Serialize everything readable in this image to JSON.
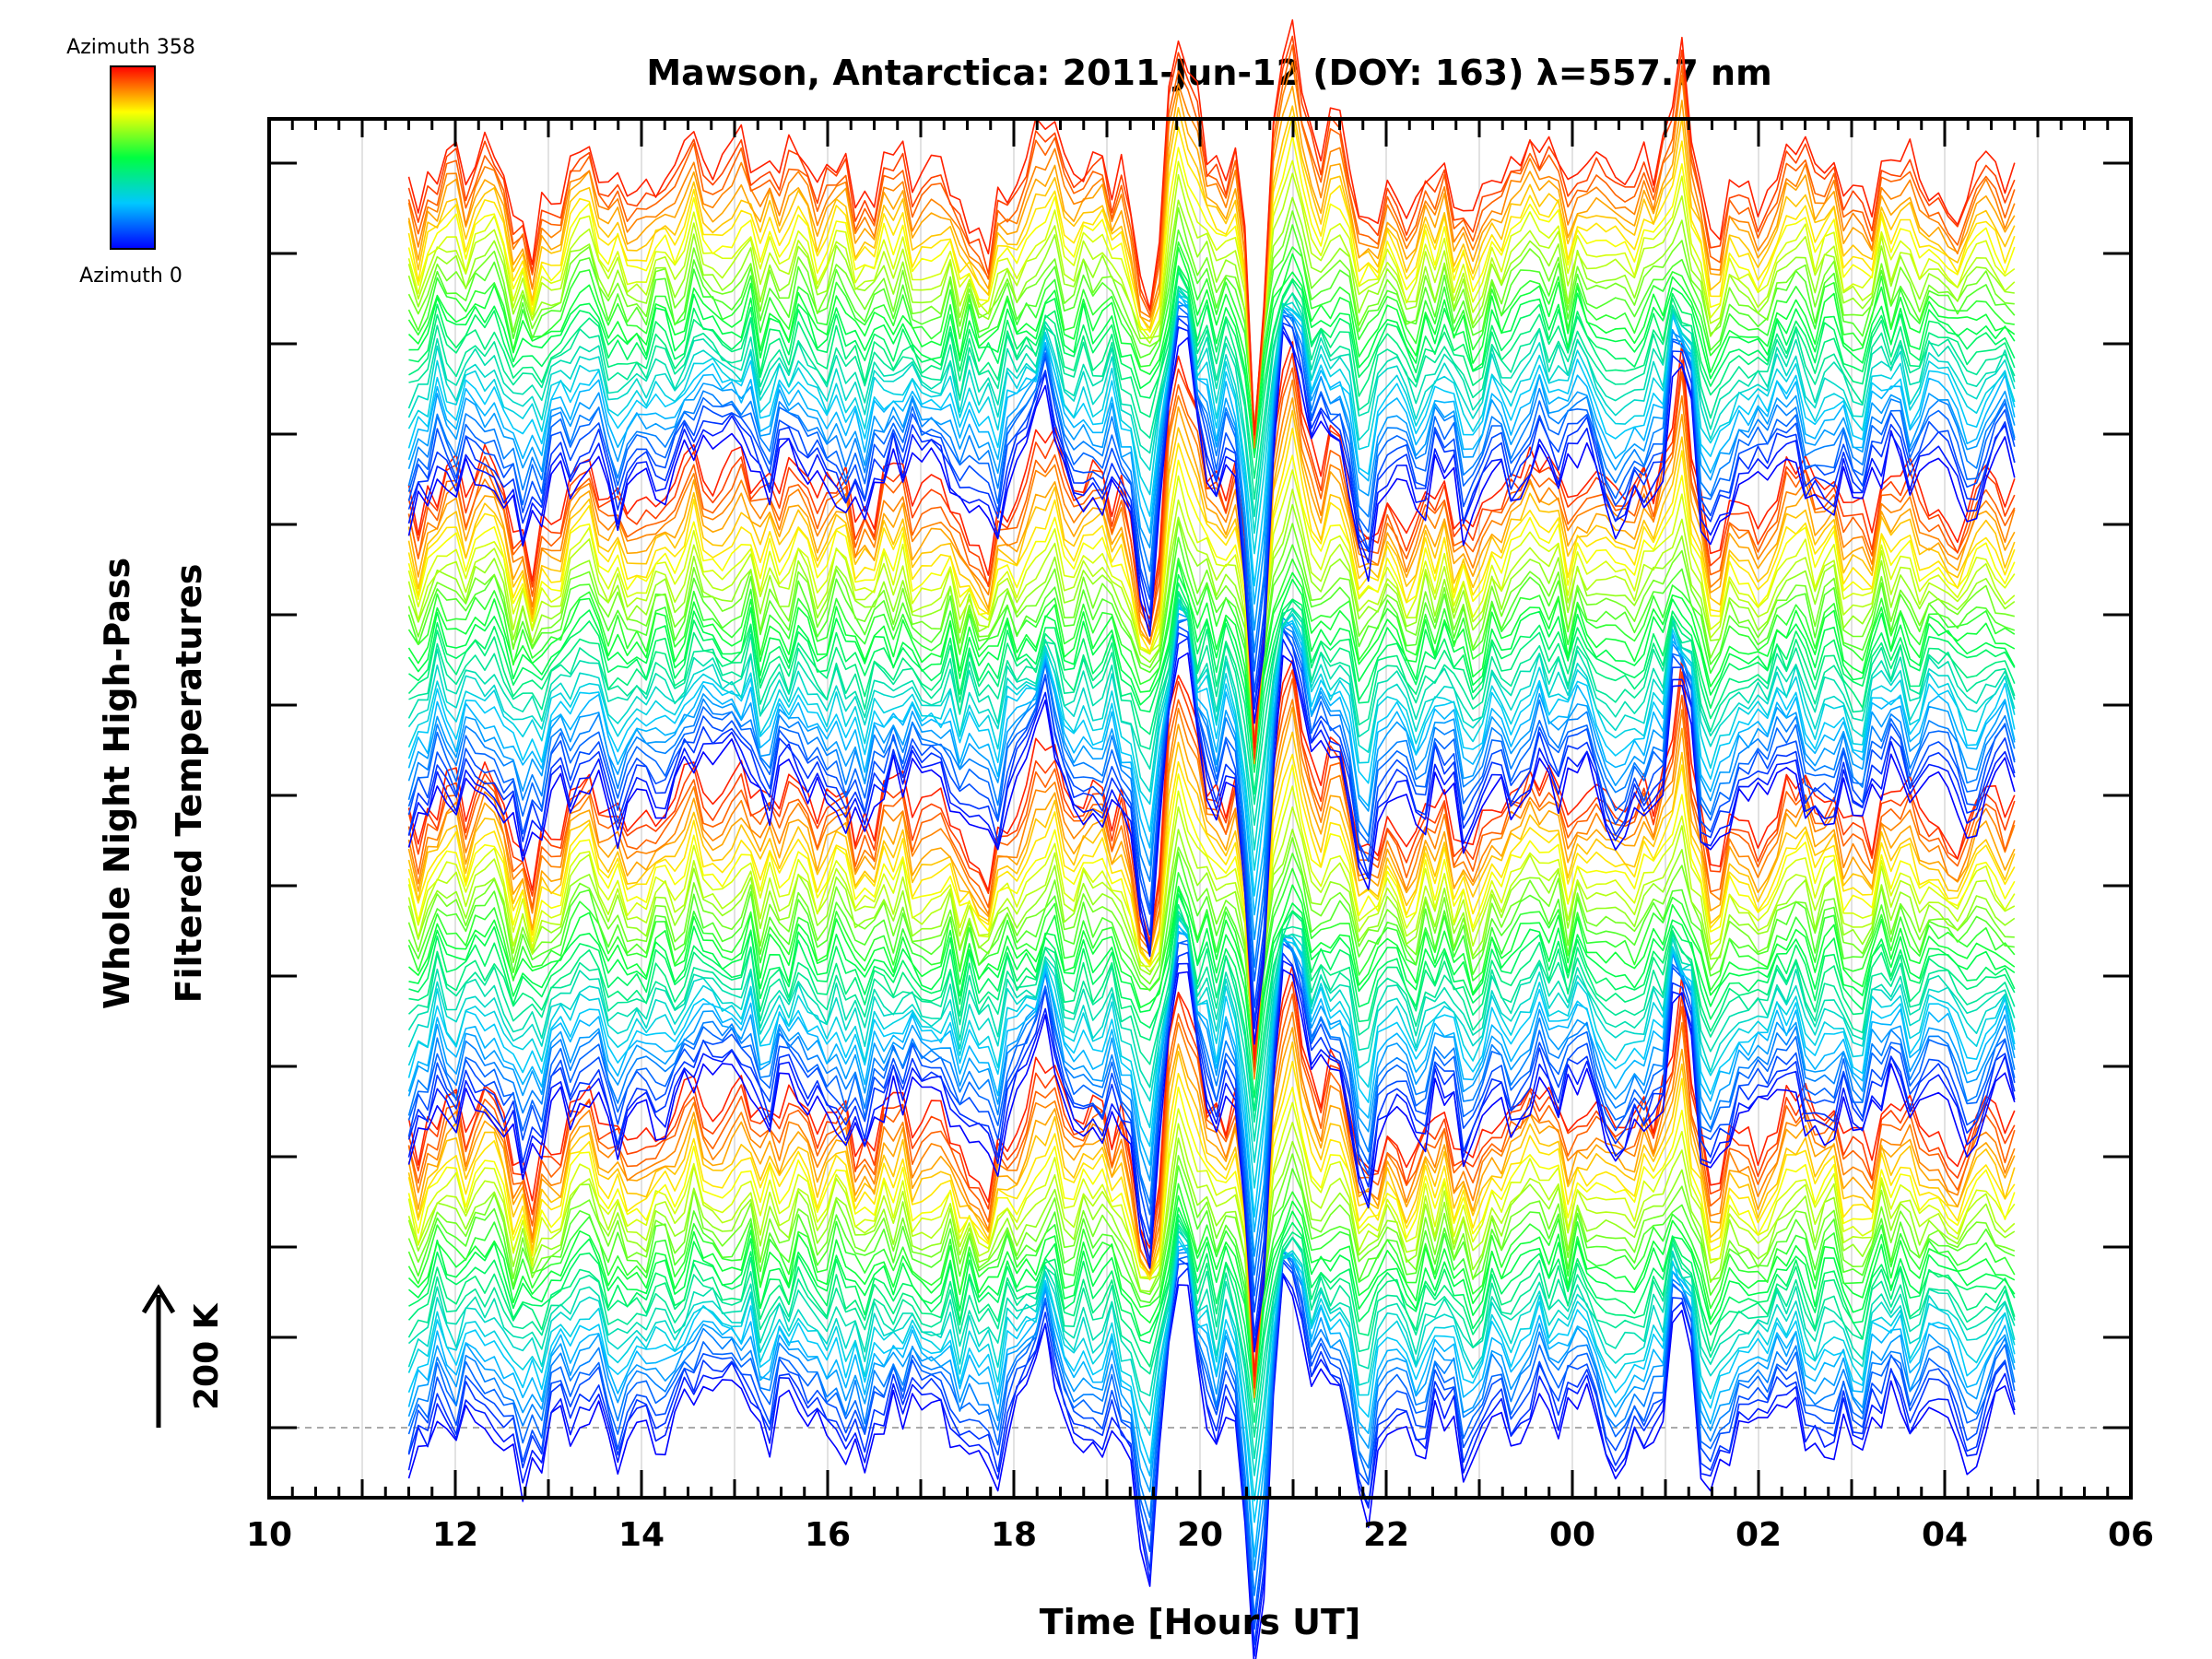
{
  "chart_data": {
    "type": "line",
    "title": "Mawson, Antarctica: 2011-Jun-12 (DOY: 163) λ=557.7 nm",
    "xlabel": "Time [Hours UT]",
    "ylabel_lines": [
      "Whole Night High-Pass",
      "Filtered Temperatures"
    ],
    "x_tick_labels": [
      "10",
      "12",
      "14",
      "16",
      "18",
      "20",
      "22",
      "00",
      "02",
      "04",
      "06"
    ],
    "x_range_hours": [
      10,
      30
    ],
    "data_time_range_hours": [
      11.5,
      28.75
    ],
    "scale_bar": {
      "label": "200 K",
      "kelvin": 200
    },
    "legend": {
      "top_label": "Azimuth 358",
      "bottom_label": "Azimuth 0",
      "colormap": "rainbow"
    },
    "azimuth_range": [
      0,
      358
    ],
    "series_count": 124,
    "stack_group_size": 31,
    "grid": true,
    "colors": {
      "low": "#0000ff",
      "mid": "#00ff00",
      "high": "#ff0000"
    },
    "events": [
      {
        "time_hours": 19.45,
        "kelvin": -280,
        "width_hours": 0.18
      },
      {
        "time_hours": 19.75,
        "kelvin": 230,
        "width_hours": 0.25
      },
      {
        "time_hours": 20.6,
        "kelvin": -380,
        "width_hours": 0.12
      },
      {
        "time_hours": 20.95,
        "kelvin": 200,
        "width_hours": 0.2
      },
      {
        "time_hours": 21.35,
        "kelvin": 60,
        "width_hours": 0.3
      },
      {
        "time_hours": 21.75,
        "kelvin": -110,
        "width_hours": 0.18
      },
      {
        "time_hours": 17.75,
        "kelvin": -90,
        "width_hours": 0.15
      },
      {
        "time_hours": 18.4,
        "kelvin": 90,
        "width_hours": 0.2
      },
      {
        "time_hours": 15.0,
        "kelvin": 60,
        "width_hours": 0.35
      },
      {
        "time_hours": 12.85,
        "kelvin": -70,
        "width_hours": 0.15
      },
      {
        "time_hours": 25.15,
        "kelvin": 150,
        "width_hours": 0.15
      },
      {
        "time_hours": 25.45,
        "kelvin": -80,
        "width_hours": 0.18
      },
      {
        "time_hours": 22.9,
        "kelvin": -70,
        "width_hours": 0.2
      },
      {
        "time_hours": 23.5,
        "kelvin": 50,
        "width_hours": 0.3
      }
    ]
  }
}
